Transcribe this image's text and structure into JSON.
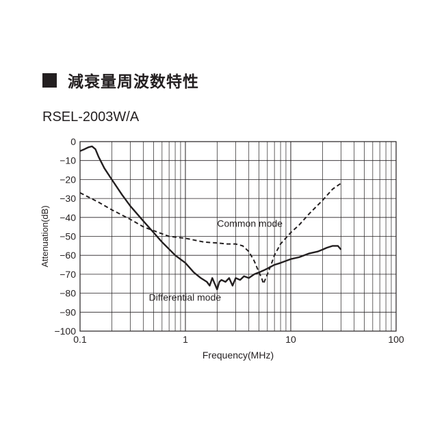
{
  "heading": {
    "title": "減衰量周波数特性",
    "marker_icon": "black-square-icon"
  },
  "model": "RSEL-2003W/A",
  "chart_data": {
    "type": "line",
    "xlabel": "Frequency(MHz)",
    "ylabel": "Attenuation(dB)",
    "xscale": "log",
    "xlim": [
      0.1,
      100
    ],
    "ylim": [
      -100,
      0
    ],
    "x_ticks": [
      0.1,
      1,
      10,
      100
    ],
    "x_tick_labels": [
      "0.1",
      "1",
      "10",
      "100"
    ],
    "y_ticks": [
      0,
      -10,
      -20,
      -30,
      -40,
      -50,
      -60,
      -70,
      -80,
      -90,
      -100
    ],
    "y_tick_labels": [
      "0",
      "−10",
      "−20",
      "−30",
      "−40",
      "−50",
      "−60",
      "−70",
      "−80",
      "−90",
      "−100"
    ],
    "grid": true,
    "annotations": [
      {
        "text": "Common mode",
        "x": 2.0,
        "y": -45
      },
      {
        "text": "Differential mode",
        "x": 0.45,
        "y": -84
      }
    ],
    "series": [
      {
        "name": "Differential mode",
        "style": "solid",
        "color": "#231f20",
        "x": [
          0.1,
          0.11,
          0.12,
          0.13,
          0.14,
          0.15,
          0.17,
          0.2,
          0.25,
          0.3,
          0.4,
          0.5,
          0.6,
          0.8,
          1.0,
          1.2,
          1.4,
          1.6,
          1.7,
          1.8,
          1.9,
          2.0,
          2.1,
          2.2,
          2.4,
          2.6,
          2.8,
          3.0,
          3.3,
          3.6,
          4.0,
          4.5,
          5.0,
          5.5,
          6.0,
          7.0,
          8.0,
          10,
          12,
          15,
          18,
          20,
          22,
          25,
          28,
          30
        ],
        "y": [
          -5,
          -4,
          -3,
          -2.5,
          -4,
          -8,
          -14,
          -20,
          -28,
          -34,
          -42,
          -48,
          -53,
          -60,
          -64,
          -69,
          -72,
          -74,
          -76,
          -72,
          -75,
          -78,
          -74,
          -73,
          -74,
          -72,
          -76,
          -72,
          -73,
          -71,
          -72,
          -70,
          -69,
          -68,
          -67,
          -65,
          -64,
          -62,
          -61,
          -59,
          -58,
          -57,
          -56,
          -55,
          -55,
          -57
        ]
      },
      {
        "name": "Common mode",
        "style": "dashed",
        "color": "#231f20",
        "x": [
          0.1,
          0.15,
          0.2,
          0.3,
          0.4,
          0.5,
          0.7,
          1.0,
          1.5,
          2.0,
          2.5,
          3.0,
          3.5,
          4.0,
          4.5,
          5.0,
          5.3,
          5.5,
          5.8,
          6.0,
          6.5,
          7.0,
          8.0,
          10,
          12,
          15,
          20,
          25,
          30
        ],
        "y": [
          -27,
          -32,
          -36,
          -41,
          -45,
          -47,
          -50,
          -51,
          -53,
          -53.5,
          -54,
          -54,
          -55,
          -58,
          -63,
          -69,
          -72,
          -75,
          -72,
          -70,
          -65,
          -60,
          -54,
          -48,
          -44,
          -38,
          -31,
          -25,
          -22
        ]
      }
    ]
  }
}
